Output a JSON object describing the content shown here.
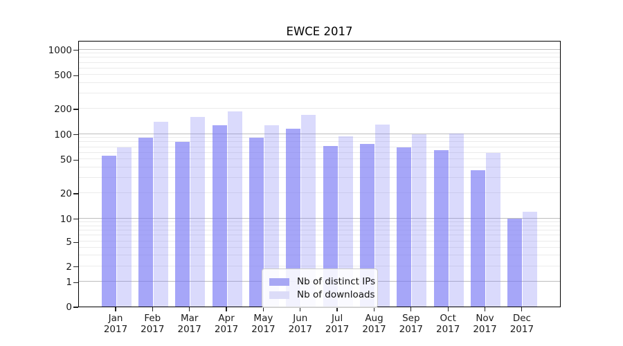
{
  "chart_data": {
    "type": "bar",
    "title": "EWCE 2017",
    "categories": [
      "Jan 2017",
      "Feb 2017",
      "Mar 2017",
      "Apr 2017",
      "May 2017",
      "Jun 2017",
      "Jul 2017",
      "Aug 2017",
      "Sep 2017",
      "Oct 2017",
      "Nov 2017",
      "Dec 2017"
    ],
    "series": [
      {
        "name": "Nb of distinct IPs",
        "values": [
          55,
          91,
          80,
          127,
          91,
          115,
          72,
          76,
          70,
          65,
          37,
          10
        ]
      },
      {
        "name": "Nb of downloads",
        "values": [
          70,
          140,
          158,
          185,
          128,
          167,
          94,
          130,
          100,
          101,
          60,
          12
        ]
      }
    ],
    "xlabel": "",
    "ylabel": "",
    "yscale": "symlog",
    "yticks": [
      0,
      1,
      2,
      5,
      10,
      20,
      50,
      100,
      200,
      500,
      1000
    ],
    "ylim": [
      0,
      1300
    ],
    "grid": "on",
    "legend_position": "lower center",
    "colors": {
      "bar_distinct_ips": "rgba(120,120,245,0.66)",
      "bar_downloads": "rgba(120,120,245,0.27)",
      "swatch_distinct_ips": "#a7a7f4",
      "swatch_downloads": "#dcdcf8",
      "grid_major": "#bdbdbd",
      "grid_minor": "#ebebeb",
      "spine": "#000000"
    }
  }
}
